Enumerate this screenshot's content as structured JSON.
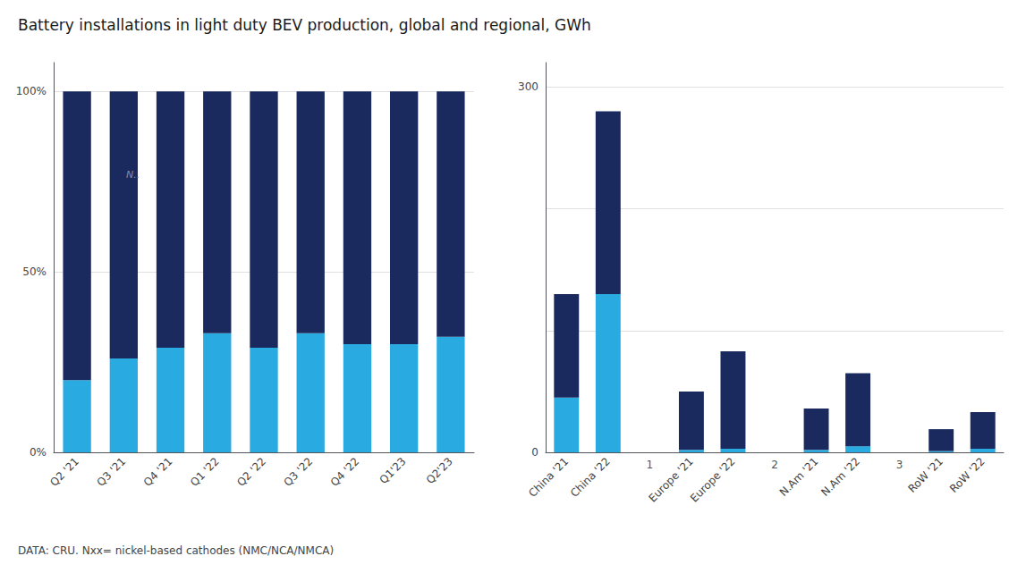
{
  "title": "Battery installations in light duty BEV production, global and regional, GWh",
  "footnote": "DATA: CRU. Nxx= nickel-based cathodes (NMC/NCA/NMCA)",
  "chart_data": [
    {
      "type": "bar",
      "categories": [
        "Q2 '21",
        "Q3 '21",
        "Q4 '21",
        "Q1 '22",
        "Q2 '22",
        "Q3 '22",
        "Q4 '22",
        "Q1'23",
        "Q2'23"
      ],
      "series": [
        {
          "color": "#29abe2",
          "values": [
            20,
            26,
            29,
            33,
            29,
            33,
            30,
            30,
            32
          ]
        },
        {
          "color": "#1b2a5e",
          "values": [
            80,
            74,
            71,
            67,
            71,
            67,
            70,
            70,
            68
          ]
        }
      ],
      "stacked": true,
      "ylim": [
        0,
        108
      ],
      "yticks": [
        {
          "value": 0,
          "label": "0%"
        },
        {
          "value": 50,
          "label": "50%"
        },
        {
          "value": 100,
          "label": "100%"
        }
      ],
      "grid": true,
      "annotations": [
        {
          "text": "N..",
          "x": 1.05,
          "y": 77
        }
      ]
    },
    {
      "type": "bar",
      "categories": [
        "China '21",
        "China '22",
        null,
        "Europe '21",
        "Europe '22",
        null,
        "N.Am '21",
        "N.Am '22",
        null,
        "RoW '21",
        "RoW '22"
      ],
      "series": [
        {
          "color": "#29abe2",
          "values": [
            45,
            130,
            0,
            2,
            3,
            0,
            2,
            5,
            0,
            1,
            3
          ]
        },
        {
          "color": "#1b2a5e",
          "values": [
            85,
            150,
            0,
            48,
            80,
            0,
            34,
            60,
            0,
            18,
            30
          ]
        }
      ],
      "stacked": true,
      "ylim": [
        0,
        320
      ],
      "yticks": [
        0,
        {
          "value": 100,
          "label": null
        },
        {
          "value": 200,
          "label": null
        },
        300
      ],
      "grid": true,
      "annotations": [
        {
          "text": "1",
          "x": 2,
          "y": 0
        },
        {
          "text": "2",
          "x": 5,
          "y": 0
        },
        {
          "text": "3",
          "x": 8,
          "y": 0
        }
      ]
    }
  ]
}
